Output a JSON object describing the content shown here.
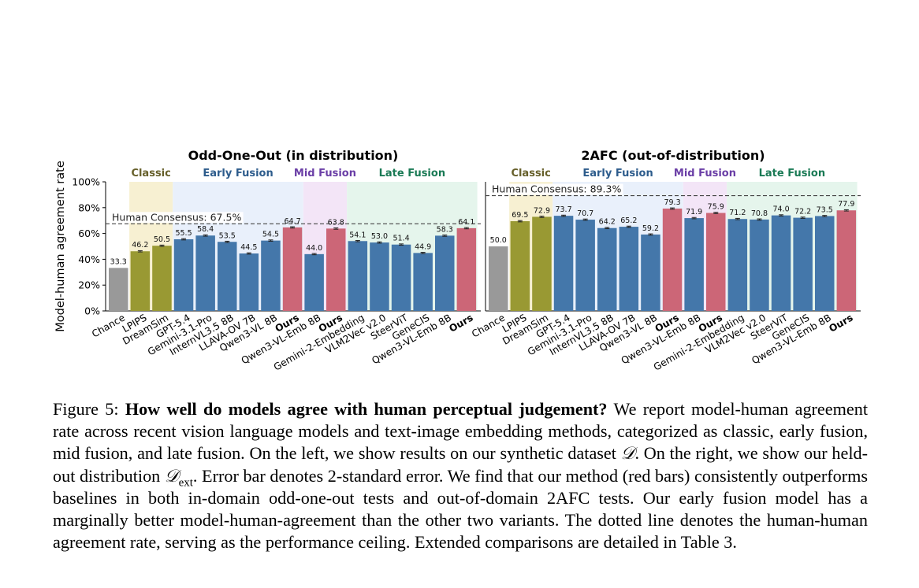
{
  "palette": {
    "chance": "#999999",
    "classic": "#999933",
    "baseline": "#4477aa",
    "ours": "#cc6677",
    "classic_bg": "#f7f0d2",
    "early_bg": "#e9f0fb",
    "mid_bg": "#f3e5f7",
    "late_bg": "#e5f5ec",
    "classic_text": "#665f2a",
    "early_text": "#2d5c8c",
    "mid_text": "#6a3ea6",
    "late_text": "#1a7a55"
  },
  "chart_data": [
    {
      "type": "bar",
      "title": "Odd-One-Out (in distribution)",
      "ylabel": "Model-human agreement rate",
      "ylim": [
        0,
        100
      ],
      "yticks": [
        "0%",
        "20%",
        "40%",
        "60%",
        "80%",
        "100%"
      ],
      "reference_line": {
        "label": "Human Consensus: 67.5%",
        "value": 67.5
      },
      "groups": [
        {
          "name": "Classic",
          "color_key": "classic"
        },
        {
          "name": "Early Fusion",
          "color_key": "early"
        },
        {
          "name": "Mid Fusion",
          "color_key": "mid"
        },
        {
          "name": "Late Fusion",
          "color_key": "late"
        }
      ],
      "bars": [
        {
          "category": "Chance",
          "value": 33.3,
          "label": "33.3",
          "group": "",
          "kind": "chance",
          "bold": false
        },
        {
          "category": "LPIPS",
          "value": 46.2,
          "label": "46.2",
          "group": "Classic",
          "kind": "classic",
          "bold": false
        },
        {
          "category": "DreamSim",
          "value": 50.5,
          "label": "50.5",
          "group": "Classic",
          "kind": "classic",
          "bold": false
        },
        {
          "category": "GPT-5.4",
          "value": 55.5,
          "label": "55.5",
          "group": "Early Fusion",
          "kind": "baseline",
          "bold": false
        },
        {
          "category": "Gemini-3.1-Pro",
          "value": 58.4,
          "label": "58.4",
          "group": "Early Fusion",
          "kind": "baseline",
          "bold": false
        },
        {
          "category": "InternVL3.5 8B",
          "value": 53.5,
          "label": "53.5",
          "group": "Early Fusion",
          "kind": "baseline",
          "bold": false
        },
        {
          "category": "LLAVA-OV 7B",
          "value": 44.5,
          "label": "44.5",
          "group": "Early Fusion",
          "kind": "baseline",
          "bold": false
        },
        {
          "category": "Qwen3-VL 8B",
          "value": 54.5,
          "label": "54.5",
          "group": "Early Fusion",
          "kind": "baseline",
          "bold": false
        },
        {
          "category": "Ours",
          "value": 64.7,
          "label": "64.7",
          "group": "Early Fusion",
          "kind": "ours",
          "bold": true
        },
        {
          "category": "Qwen3-VL-Emb 8B",
          "value": 44.0,
          "label": "44.0",
          "group": "Mid Fusion",
          "kind": "baseline",
          "bold": false
        },
        {
          "category": "Ours",
          "value": 63.8,
          "label": "63.8",
          "group": "Mid Fusion",
          "kind": "ours",
          "bold": true
        },
        {
          "category": "Gemini-2-Embedding",
          "value": 54.1,
          "label": "54.1",
          "group": "Late Fusion",
          "kind": "baseline",
          "bold": false
        },
        {
          "category": "VLM2Vec v2.0",
          "value": 53.0,
          "label": "53.0",
          "group": "Late Fusion",
          "kind": "baseline",
          "bold": false
        },
        {
          "category": "SteerViT",
          "value": 51.4,
          "label": "51.4",
          "group": "Late Fusion",
          "kind": "baseline",
          "bold": false
        },
        {
          "category": "GeneCIS",
          "value": 44.9,
          "label": "44.9",
          "group": "Late Fusion",
          "kind": "baseline",
          "bold": false
        },
        {
          "category": "Qwen3-VL-Emb 8B",
          "value": 58.3,
          "label": "58.3",
          "group": "Late Fusion",
          "kind": "baseline",
          "bold": false
        },
        {
          "category": "Ours",
          "value": 64.1,
          "label": "64.1",
          "group": "Late Fusion",
          "kind": "ours",
          "bold": true
        }
      ]
    },
    {
      "type": "bar",
      "title": "2AFC (out-of-distribution)",
      "ylabel": "",
      "ylim": [
        0,
        100
      ],
      "yticks": [],
      "reference_line": {
        "label": "Human Consensus: 89.3%",
        "value": 89.3
      },
      "groups": [
        {
          "name": "Classic",
          "color_key": "classic"
        },
        {
          "name": "Early Fusion",
          "color_key": "early"
        },
        {
          "name": "Mid Fusion",
          "color_key": "mid"
        },
        {
          "name": "Late Fusion",
          "color_key": "late"
        }
      ],
      "bars": [
        {
          "category": "Chance",
          "value": 50.0,
          "label": "50.0",
          "group": "",
          "kind": "chance",
          "bold": false
        },
        {
          "category": "LPIPS",
          "value": 69.5,
          "label": "69.5",
          "group": "Classic",
          "kind": "classic",
          "bold": false
        },
        {
          "category": "DreamSim",
          "value": 72.9,
          "label": "72.9",
          "group": "Classic",
          "kind": "classic",
          "bold": false
        },
        {
          "category": "GPT-5.4",
          "value": 73.7,
          "label": "73.7",
          "group": "Early Fusion",
          "kind": "baseline",
          "bold": false
        },
        {
          "category": "Gemini-3.1-Pro",
          "value": 70.7,
          "label": "70.7",
          "group": "Early Fusion",
          "kind": "baseline",
          "bold": false
        },
        {
          "category": "InternVL3.5 8B",
          "value": 64.2,
          "label": "64.2",
          "group": "Early Fusion",
          "kind": "baseline",
          "bold": false
        },
        {
          "category": "LLAVA-OV 7B",
          "value": 65.2,
          "label": "65.2",
          "group": "Early Fusion",
          "kind": "baseline",
          "bold": false
        },
        {
          "category": "Qwen3-VL 8B",
          "value": 59.2,
          "label": "59.2",
          "group": "Early Fusion",
          "kind": "baseline",
          "bold": false
        },
        {
          "category": "Ours",
          "value": 79.3,
          "label": "79.3",
          "group": "Early Fusion",
          "kind": "ours",
          "bold": true
        },
        {
          "category": "Qwen3-VL-Emb 8B",
          "value": 71.9,
          "label": "71.9",
          "group": "Mid Fusion",
          "kind": "baseline",
          "bold": false
        },
        {
          "category": "Ours",
          "value": 75.9,
          "label": "75.9",
          "group": "Mid Fusion",
          "kind": "ours",
          "bold": true
        },
        {
          "category": "Gemini-2-Embedding",
          "value": 71.2,
          "label": "71.2",
          "group": "Late Fusion",
          "kind": "baseline",
          "bold": false
        },
        {
          "category": "VLM2Vec v2.0",
          "value": 70.8,
          "label": "70.8",
          "group": "Late Fusion",
          "kind": "baseline",
          "bold": false
        },
        {
          "category": "SteerViT",
          "value": 74.0,
          "label": "74.0",
          "group": "Late Fusion",
          "kind": "baseline",
          "bold": false
        },
        {
          "category": "GeneCIS",
          "value": 72.2,
          "label": "72.2",
          "group": "Late Fusion",
          "kind": "baseline",
          "bold": false
        },
        {
          "category": "Qwen3-VL-Emb 8B",
          "value": 73.5,
          "label": "73.5",
          "group": "Late Fusion",
          "kind": "baseline",
          "bold": false
        },
        {
          "category": "Ours",
          "value": 77.9,
          "label": "77.9",
          "group": "Late Fusion",
          "kind": "ours",
          "bold": true
        }
      ]
    }
  ],
  "caption": {
    "label": "Figure 5:",
    "bold": "How well do models agree with human perceptual judgement?",
    "part1": "We report model-human agreement rate across recent vision language models and text-image embedding methods, categorized as classic, early fusion, mid fusion, and late fusion. On the left, we show results on our synthetic dataset",
    "math1": "𝒟",
    "part2": ". On the right, we show our held-out distribution",
    "math2": "𝒟",
    "math2_sub": "ext",
    "part3": ". Error bar denotes 2-standard error. We find that our method (red bars) consistently outperforms baselines in both in-domain odd-one-out tests and out-of-domain 2AFC tests. Our early fusion model has a marginally better model-human-agreement than the other two variants. The dotted line denotes the human-human agreement rate, serving as the performance ceiling. Extended comparisons are detailed in Table 3."
  }
}
